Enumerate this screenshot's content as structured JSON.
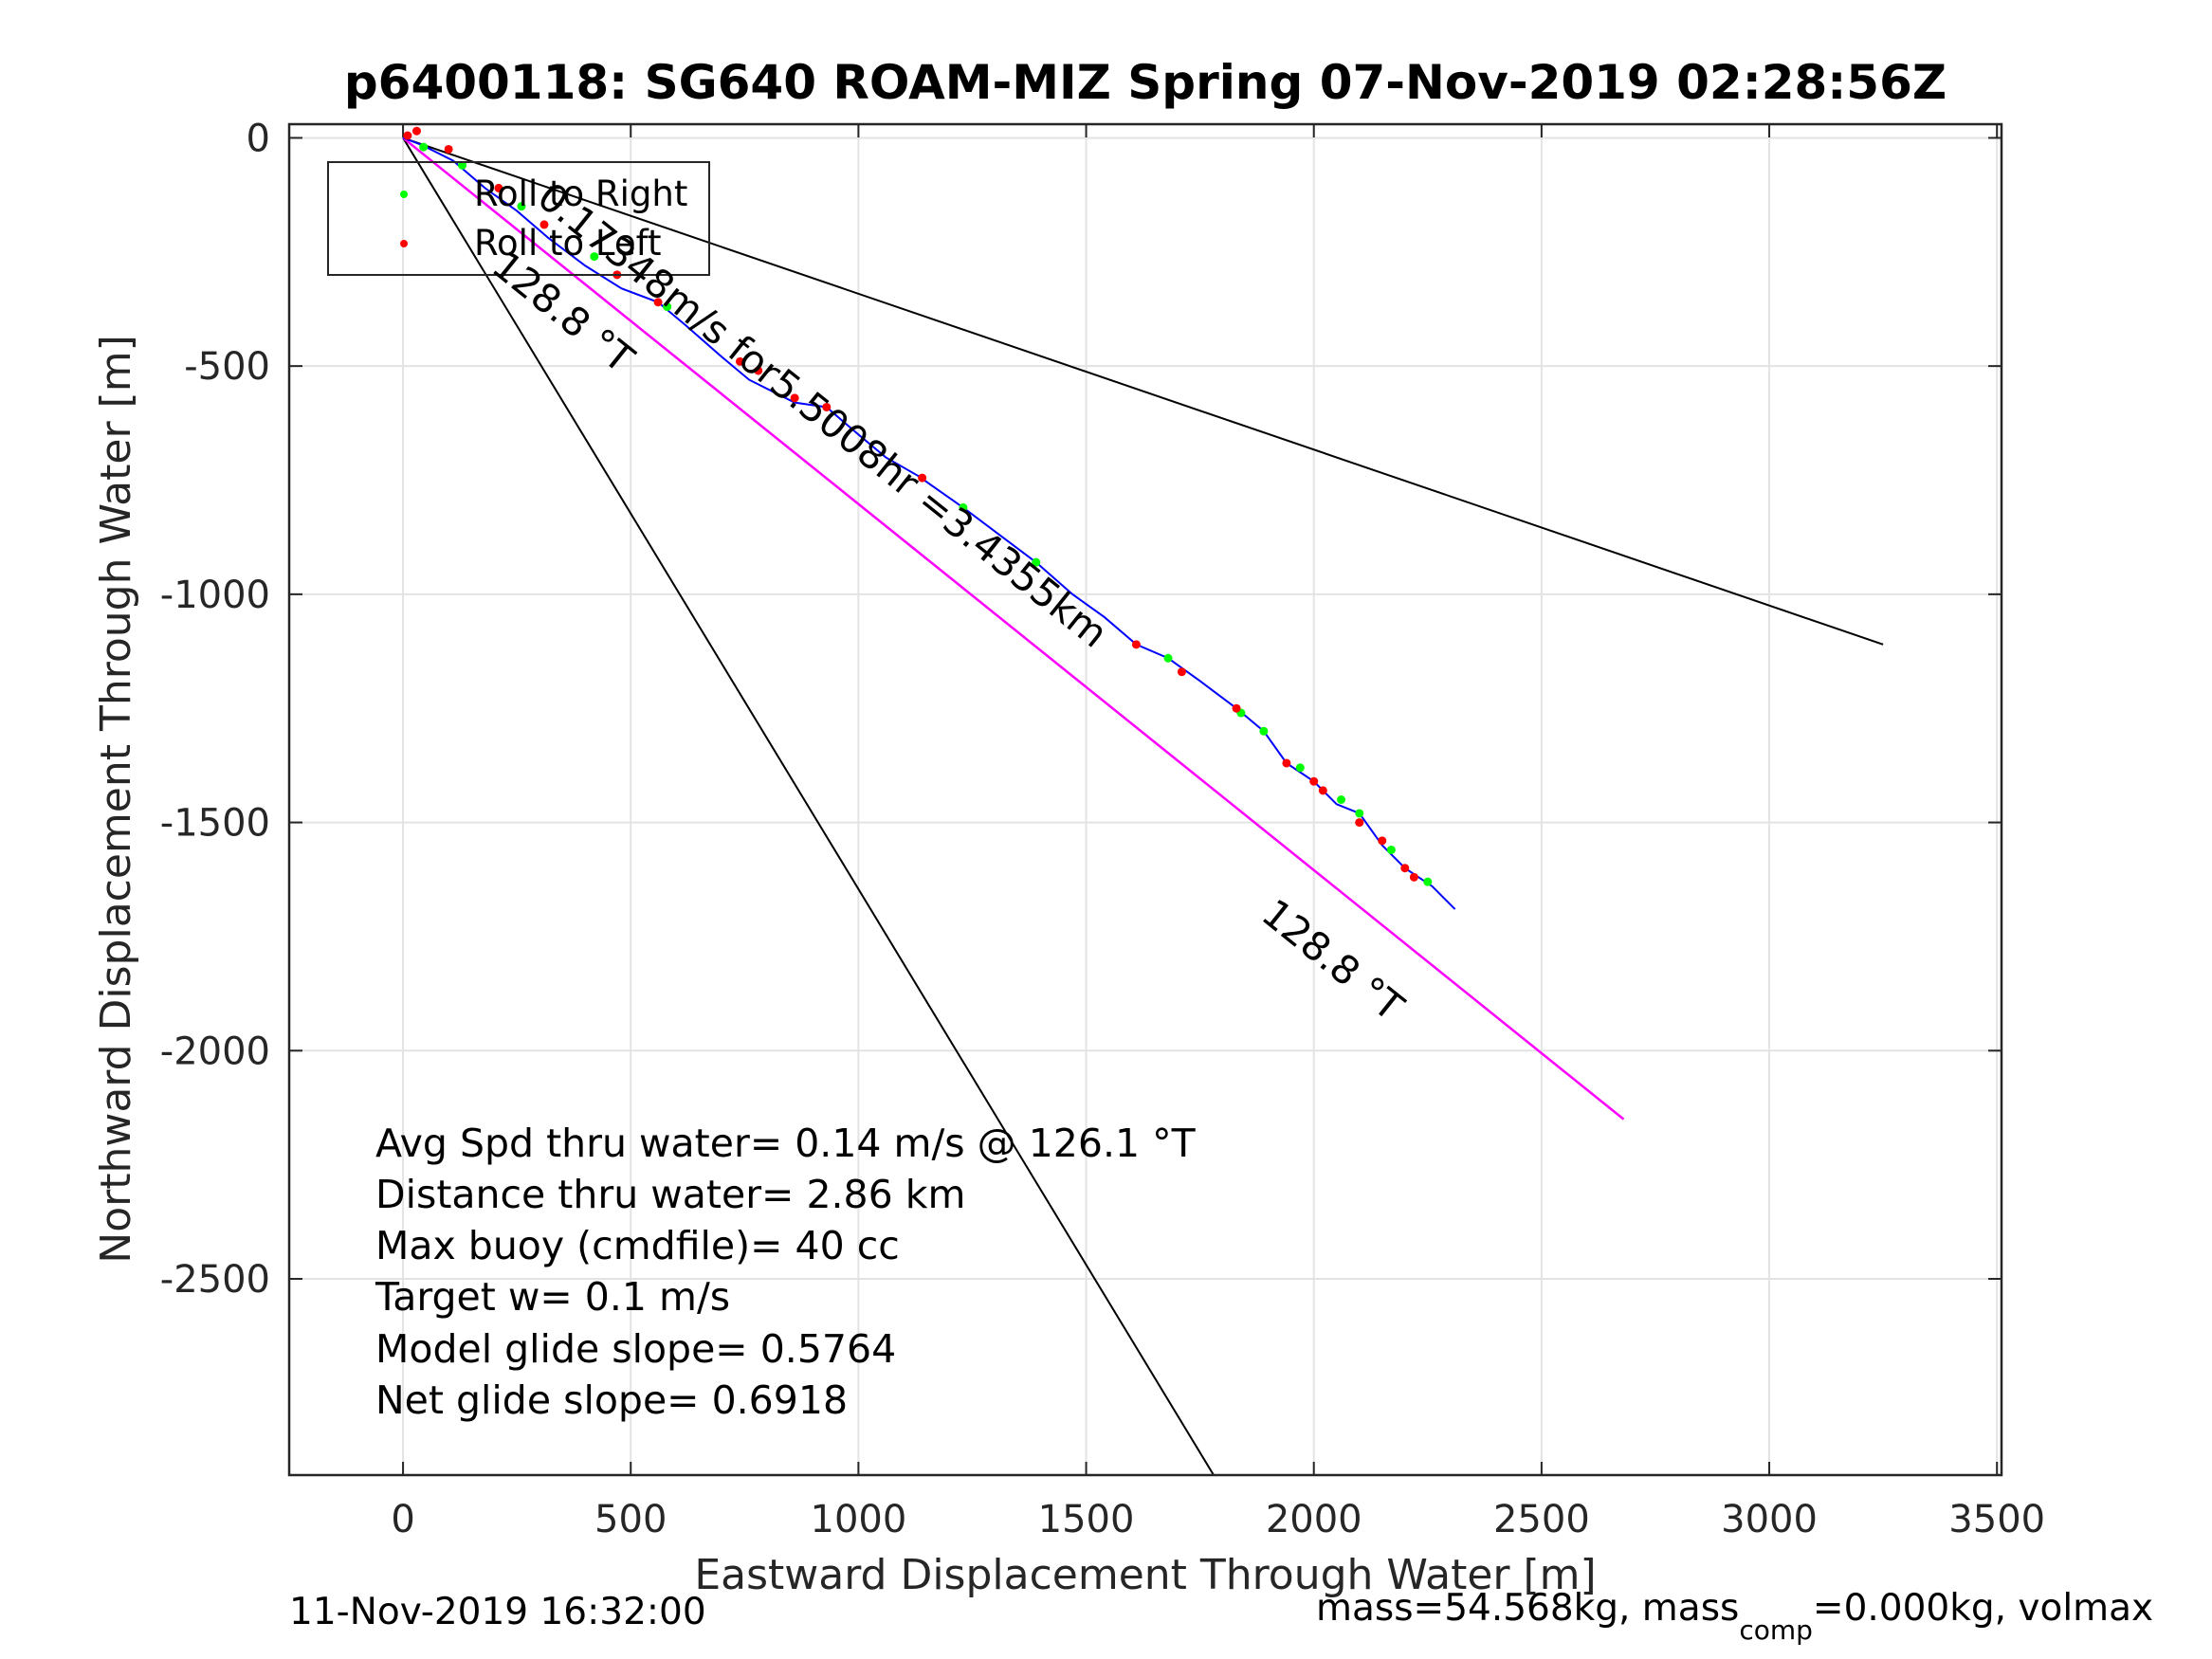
{
  "chart_data": {
    "type": "line",
    "title": "p6400118: SG640 ROAM-MIZ Spring 07-Nov-2019 02:28:56Z",
    "xlabel": "Eastward Displacement Through Water [m]",
    "ylabel": "Northward Displacement Through Water [m]",
    "xlim": [
      -250,
      3510
    ],
    "ylim": [
      -2930,
      30
    ],
    "xticks": [
      0,
      500,
      1000,
      1500,
      2000,
      2500,
      3000,
      3500
    ],
    "yticks": [
      0,
      -500,
      -1000,
      -1500,
      -2000,
      -2500
    ],
    "xtick_labels": [
      "0",
      "500",
      "1000",
      "1500",
      "2000",
      "2500",
      "3000",
      "3500"
    ],
    "ytick_labels": [
      "0",
      "-500",
      "-1000",
      "-1500",
      "-2000",
      "-2500"
    ],
    "grid": true,
    "legend": {
      "position": "top-left",
      "entries": [
        "Roll to Right",
        "Roll to Left"
      ]
    },
    "colors": {
      "track": "#0000ff",
      "right": "#00ff00",
      "left": "#ff0000",
      "heading": "#ff00ff",
      "lines": "#000000"
    },
    "track": {
      "x": [
        0,
        40,
        110,
        180,
        250,
        320,
        400,
        480,
        560,
        620,
        700,
        760,
        800,
        860,
        930,
        1000,
        1060,
        1130,
        1230,
        1310,
        1390,
        1470,
        1540,
        1610,
        1680,
        1750,
        1830,
        1890,
        1940,
        2000,
        2050,
        2100,
        2150,
        2200,
        2260,
        2310
      ],
      "y": [
        0,
        -15,
        -50,
        -110,
        -160,
        -220,
        -280,
        -330,
        -360,
        -410,
        -480,
        -530,
        -550,
        -580,
        -590,
        -650,
        -700,
        -740,
        -810,
        -870,
        -930,
        -1000,
        -1050,
        -1110,
        -1140,
        -1190,
        -1250,
        -1300,
        -1370,
        -1410,
        -1460,
        -1480,
        -1550,
        -1600,
        -1640,
        -1690
      ]
    },
    "right_points": [
      {
        "x": 45,
        "y": -20
      },
      {
        "x": 130,
        "y": -60
      },
      {
        "x": 260,
        "y": -150
      },
      {
        "x": 420,
        "y": -260
      },
      {
        "x": 580,
        "y": -370
      },
      {
        "x": 1230,
        "y": -810
      },
      {
        "x": 1390,
        "y": -930
      },
      {
        "x": 1680,
        "y": -1140
      },
      {
        "x": 1840,
        "y": -1260
      },
      {
        "x": 1890,
        "y": -1300
      },
      {
        "x": 1970,
        "y": -1380
      },
      {
        "x": 2060,
        "y": -1450
      },
      {
        "x": 2100,
        "y": -1480
      },
      {
        "x": 2170,
        "y": -1560
      },
      {
        "x": 2250,
        "y": -1630
      }
    ],
    "left_points": [
      {
        "x": 10,
        "y": 5
      },
      {
        "x": 30,
        "y": 15
      },
      {
        "x": 100,
        "y": -25
      },
      {
        "x": 210,
        "y": -110
      },
      {
        "x": 310,
        "y": -190
      },
      {
        "x": 470,
        "y": -300
      },
      {
        "x": 560,
        "y": -360
      },
      {
        "x": 740,
        "y": -490
      },
      {
        "x": 780,
        "y": -510
      },
      {
        "x": 860,
        "y": -570
      },
      {
        "x": 930,
        "y": -590
      },
      {
        "x": 1140,
        "y": -745
      },
      {
        "x": 1610,
        "y": -1110
      },
      {
        "x": 1710,
        "y": -1170
      },
      {
        "x": 1830,
        "y": -1250
      },
      {
        "x": 1940,
        "y": -1370
      },
      {
        "x": 2000,
        "y": -1410
      },
      {
        "x": 2020,
        "y": -1430
      },
      {
        "x": 2100,
        "y": -1500
      },
      {
        "x": 2150,
        "y": -1540
      },
      {
        "x": 2200,
        "y": -1600
      },
      {
        "x": 2220,
        "y": -1620
      }
    ],
    "heading_line": {
      "x": [
        0,
        2680
      ],
      "y": [
        0,
        -2150
      ]
    },
    "ref_lines": [
      {
        "x": [
          0,
          3250
        ],
        "y": [
          0,
          -1110
        ]
      },
      {
        "x": [
          0,
          1780
        ],
        "y": [
          0,
          -2930
        ]
      },
      {
        "x": [
          0,
          2680
        ],
        "y": [
          0,
          -2150
        ]
      }
    ],
    "annotations": [
      {
        "text": "0.17348m/s for5.5008hr =3.4355km",
        "x": 290,
        "y": -140,
        "angle_deg": 38.7
      },
      {
        "text": "128.8 °T",
        "x": 190,
        "y": -290,
        "angle_deg": 38.7
      },
      {
        "text": "128.8 °T",
        "x": 1880,
        "y": -1710,
        "angle_deg": 38.7
      }
    ],
    "stats_text": [
      "Avg Spd thru water=  0.14 m/s @ 126.1 °T",
      "Distance thru water=  2.86 km",
      "Max buoy (cmdfile)= 40 cc",
      "Target w= 0.1 m/s",
      "Model glide slope= 0.5764",
      "Net glide slope= 0.6918"
    ]
  },
  "footer": {
    "timestamp": "11-Nov-2019 16:32:00",
    "mass_prefix": "mass=54.568kg, mass",
    "mass_sub": "comp",
    "mass_suffix": "=0.000kg, volmax"
  }
}
